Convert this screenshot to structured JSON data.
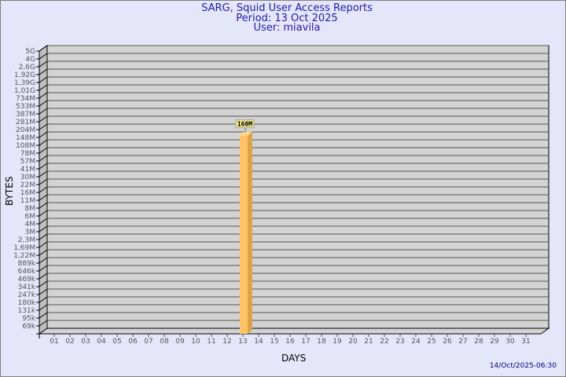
{
  "chart_data": {
    "type": "bar",
    "title": "SARG, Squid User Access Reports",
    "subtitle": [
      "Period: 13 Oct 2025",
      "User: miavila"
    ],
    "xlabel": "DAYS",
    "ylabel": "BYTES",
    "categories": [
      "01",
      "02",
      "03",
      "04",
      "05",
      "06",
      "07",
      "08",
      "09",
      "10",
      "11",
      "12",
      "13",
      "14",
      "15",
      "16",
      "17",
      "18",
      "19",
      "20",
      "21",
      "22",
      "23",
      "24",
      "25",
      "26",
      "27",
      "28",
      "29",
      "30",
      "31"
    ],
    "values": [
      null,
      null,
      null,
      null,
      null,
      null,
      null,
      null,
      null,
      null,
      null,
      null,
      160000000,
      null,
      null,
      null,
      null,
      null,
      null,
      null,
      null,
      null,
      null,
      null,
      null,
      null,
      null,
      null,
      null,
      null,
      null
    ],
    "data_labels": {
      "13": "160M"
    },
    "y_ticks": [
      "5G",
      "4G",
      "2,6G",
      "1,92G",
      "1,39G",
      "1,01G",
      "734M",
      "533M",
      "387M",
      "281M",
      "204M",
      "148M",
      "108M",
      "78M",
      "57M",
      "41M",
      "30M",
      "22M",
      "16M",
      "11M",
      "8M",
      "6M",
      "4M",
      "3M",
      "2,3M",
      "1,69M",
      "1,22M",
      "889k",
      "646k",
      "469k",
      "341k",
      "247k",
      "180k",
      "131k",
      "95k",
      "69k"
    ],
    "y_scale": "log",
    "grid": true,
    "colors": {
      "bar": "#ffc266",
      "bar_side": "#dca44a",
      "panel": "#d3d3d3",
      "background": "#e6e6fa",
      "label_box": "#f0e68c"
    }
  },
  "footer": "14/Oct/2025-06:30"
}
